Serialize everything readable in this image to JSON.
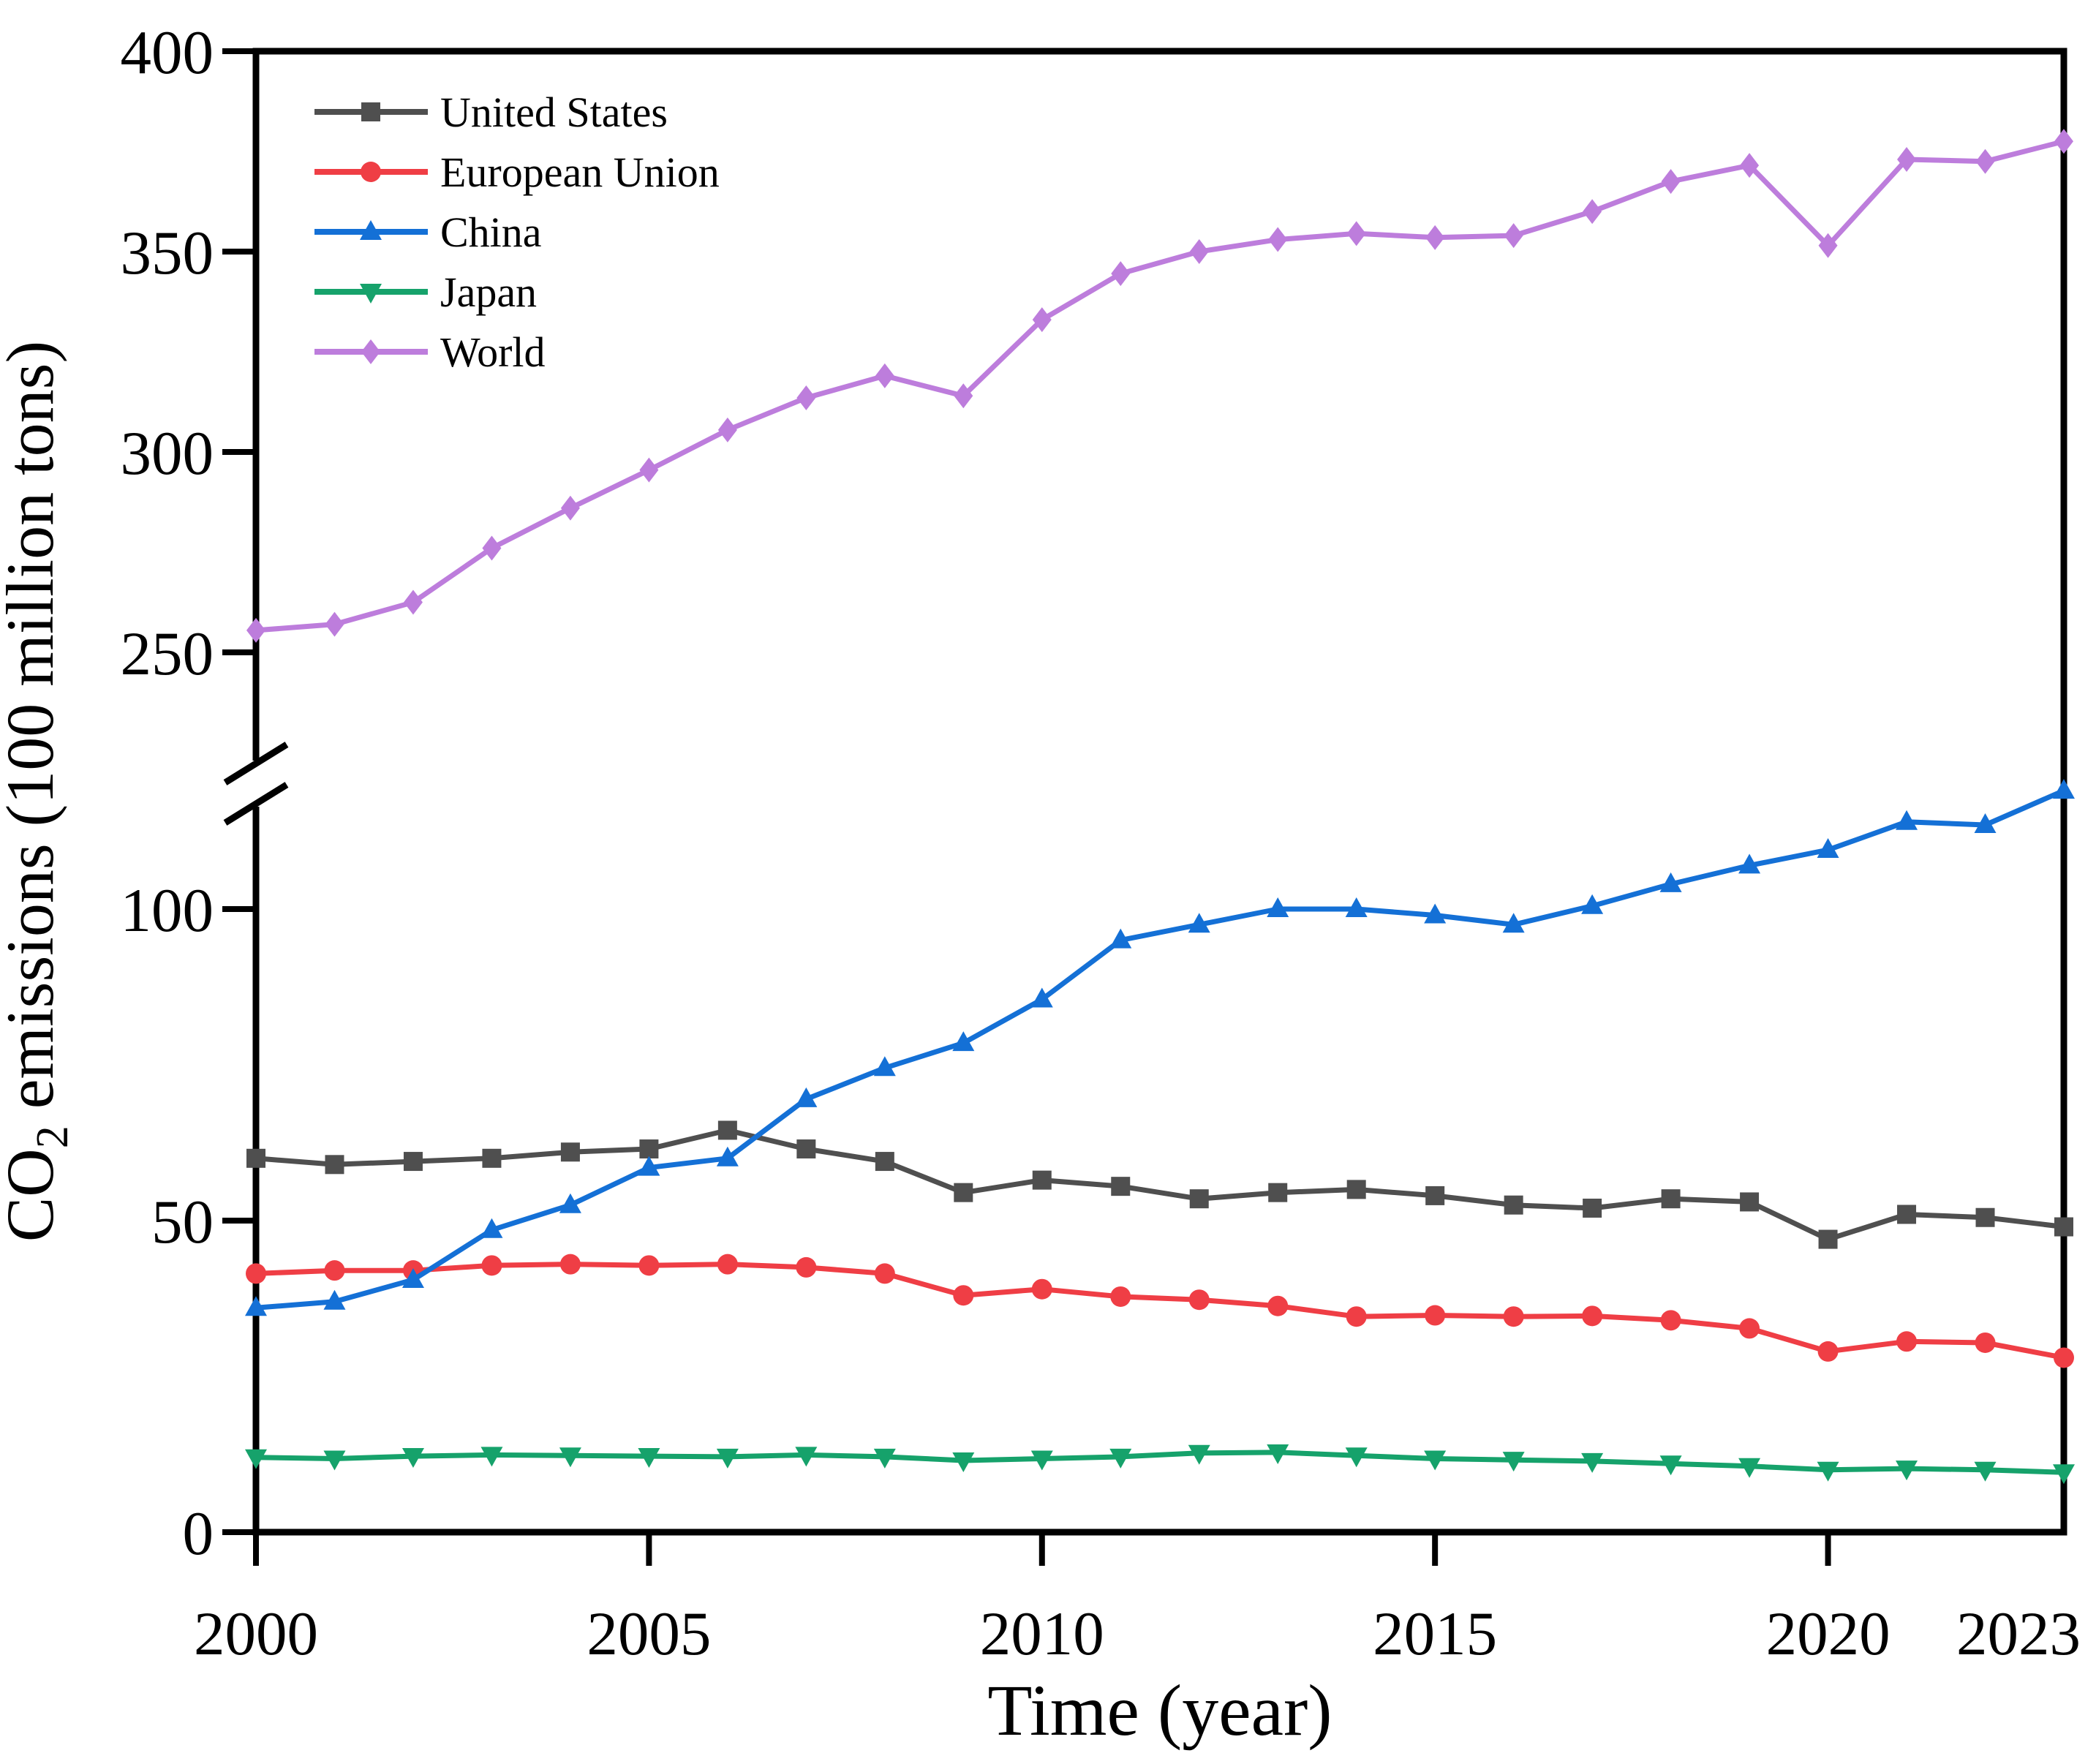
{
  "chart_data": {
    "type": "line",
    "title": "",
    "xlabel": "Time (year)",
    "ylabel": "CO₂ emissions (100 million tons)",
    "ylabel_parts": {
      "prefix": "CO",
      "sub": "2",
      "suffix": " emissions (100 million tons)"
    },
    "x": [
      2000,
      2001,
      2002,
      2003,
      2004,
      2005,
      2006,
      2007,
      2008,
      2009,
      2010,
      2011,
      2012,
      2013,
      2014,
      2015,
      2016,
      2017,
      2018,
      2019,
      2020,
      2021,
      2022,
      2023
    ],
    "series": [
      {
        "name": "United States",
        "color": "#4f4f4f",
        "marker": "square",
        "values": [
          60,
          59,
          59.5,
          60,
          61,
          61.5,
          64.5,
          61.5,
          59.5,
          54.5,
          56.5,
          55.5,
          53.5,
          54.5,
          55,
          54,
          52.5,
          52,
          53.5,
          53,
          47,
          51,
          50.5,
          49
        ]
      },
      {
        "name": "European Union",
        "color": "#ef3e45",
        "marker": "circle",
        "values": [
          41.5,
          42,
          42,
          42.8,
          43,
          42.8,
          43,
          42.5,
          41.5,
          38,
          39,
          37.8,
          37.3,
          36.3,
          34.6,
          34.8,
          34.6,
          34.7,
          34,
          32.7,
          29,
          30.6,
          30.4,
          28
        ]
      },
      {
        "name": "China",
        "color": "#1470d6",
        "marker": "triangle-up",
        "values": [
          36,
          37,
          40.5,
          48.5,
          52.5,
          58.5,
          60,
          69.5,
          74.5,
          78.5,
          85.5,
          95,
          97.5,
          100,
          100,
          99,
          97.5,
          100.5,
          104,
          107,
          109.5,
          114,
          113.5,
          119
        ]
      },
      {
        "name": "Japan",
        "color": "#16a26b",
        "marker": "triangle-down",
        "values": [
          12,
          11.8,
          12.2,
          12.4,
          12.3,
          12.2,
          12.1,
          12.4,
          12.1,
          11.5,
          11.8,
          12.1,
          12.7,
          12.8,
          12.3,
          11.8,
          11.6,
          11.4,
          11,
          10.6,
          10,
          10.2,
          10,
          9.6
        ]
      },
      {
        "name": "World",
        "color": "#bd7ddc",
        "marker": "diamond",
        "values": [
          255.5,
          257,
          262.5,
          276,
          286,
          295.5,
          305.5,
          313.5,
          319,
          314,
          333,
          344.5,
          350,
          353,
          354.5,
          353.5,
          354,
          360,
          367.5,
          371.5,
          351.5,
          373,
          372.5,
          377.5
        ]
      }
    ],
    "x_tick_labels": [
      "2000",
      "2005",
      "2010",
      "2015",
      "2020",
      "2023"
    ],
    "x_tick_marks": [
      2000,
      2005,
      2010,
      2015,
      2020
    ],
    "y_ticks_lower": [
      0,
      50,
      100
    ],
    "y_ticks_upper": [
      250,
      300,
      350,
      400
    ],
    "axis_break": true,
    "y_segments": {
      "lower": [
        0,
        120
      ],
      "upper": [
        250,
        400
      ]
    },
    "xlim": [
      2000,
      2023
    ],
    "grid": false,
    "legend_position": "inside top-left",
    "legend_entries": [
      "United States",
      "European Union",
      "China",
      "Japan",
      "World"
    ]
  }
}
